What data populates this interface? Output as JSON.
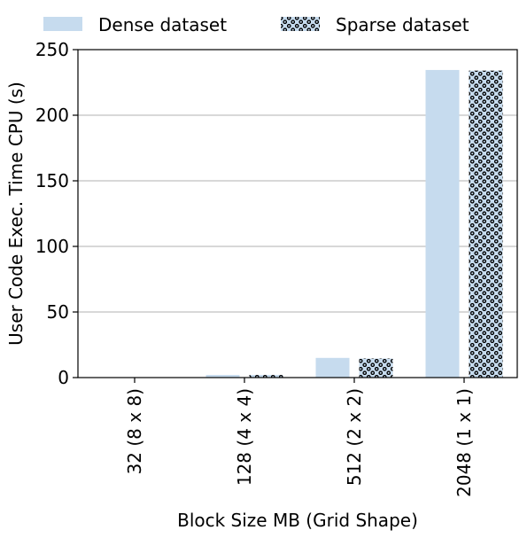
{
  "chart_data": {
    "type": "bar",
    "categories": [
      "32 (8 x 8)",
      "128 (4 x 4)",
      "512 (2 x 2)",
      "2048 (1 x 1)"
    ],
    "series": [
      {
        "name": "Dense dataset",
        "values": [
          0.2,
          2.0,
          15.0,
          234.5
        ],
        "color": "#c6dbee",
        "pattern": "none"
      },
      {
        "name": "Sparse dataset",
        "values": [
          0.2,
          2.0,
          14.5,
          234.0
        ],
        "color": "#c6dbee",
        "pattern": "dots"
      }
    ],
    "xlabel": "Block Size MB (Grid Shape)",
    "ylabel": "User Code Exec. Time CPU (s)",
    "ylim": [
      0,
      250
    ],
    "yticks": [
      0,
      50,
      100,
      150,
      200,
      250
    ],
    "grid": "y",
    "legend_position": "top"
  }
}
